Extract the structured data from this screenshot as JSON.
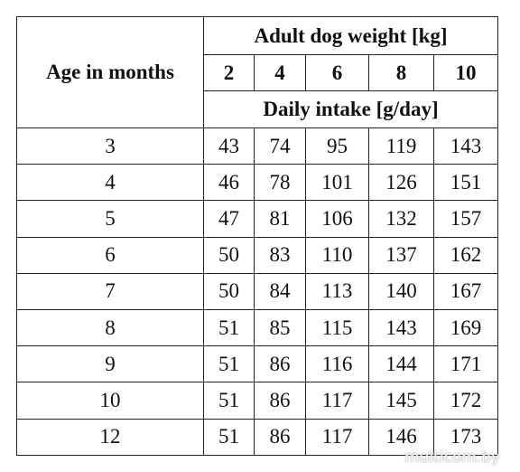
{
  "table": {
    "header": {
      "age_label": "Age in months",
      "weight_label": "Adult dog weight [kg]",
      "weights": [
        2,
        4,
        6,
        8,
        10
      ],
      "intake_label": "Daily intake [g/day]"
    },
    "rows": [
      [
        3,
        43,
        74,
        95,
        119,
        143
      ],
      [
        4,
        46,
        78,
        101,
        126,
        151
      ],
      [
        5,
        47,
        81,
        106,
        132,
        157
      ],
      [
        6,
        50,
        83,
        110,
        137,
        162
      ],
      [
        7,
        50,
        84,
        113,
        140,
        167
      ],
      [
        8,
        51,
        85,
        115,
        143,
        169
      ],
      [
        9,
        51,
        86,
        116,
        144,
        171
      ],
      [
        10,
        51,
        86,
        117,
        145,
        172
      ],
      [
        12,
        51,
        86,
        117,
        146,
        173
      ]
    ]
  },
  "watermark": "multicom.by"
}
